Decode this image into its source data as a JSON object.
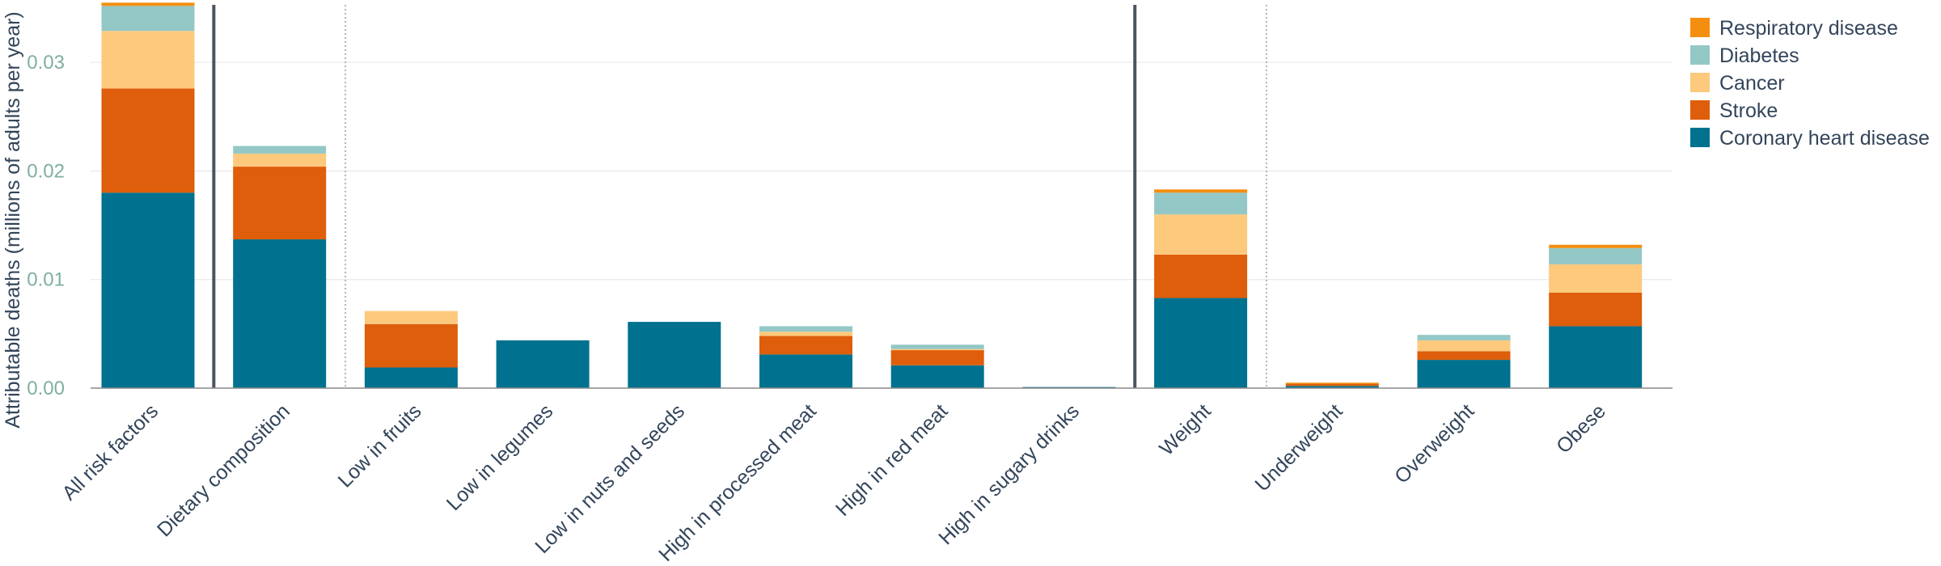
{
  "chart_data": {
    "type": "bar",
    "stacked": true,
    "title": "",
    "xlabel": "",
    "ylabel": "Attributable deaths (millions of adults per year)",
    "ylim": [
      0,
      0.0353
    ],
    "yticks": [
      0.0,
      0.01,
      0.02,
      0.03
    ],
    "ytick_labels": [
      "0.00",
      "0.01",
      "0.02",
      "0.03"
    ],
    "grid": true,
    "legend_position": "top-right",
    "categories": [
      "All risk factors",
      "Dietary composition",
      "Low in fruits",
      "Low in legumes",
      "Low in nuts and seeds",
      "High in processed meat",
      "High in red meat",
      "High in sugary drinks",
      "Weight",
      "Underweight",
      "Overweight",
      "Obese"
    ],
    "separators": [
      {
        "after_index": 0,
        "style": "solid"
      },
      {
        "after_index": 1,
        "style": "dotted"
      },
      {
        "after_index": 7,
        "style": "solid"
      },
      {
        "after_index": 8,
        "style": "dotted"
      }
    ],
    "series": [
      {
        "name": "Coronary heart disease",
        "color": "#00718f",
        "values": [
          0.018,
          0.0137,
          0.0019,
          0.0044,
          0.0061,
          0.0031,
          0.0021,
          0.0001,
          0.0083,
          0.0002,
          0.0026,
          0.0057
        ]
      },
      {
        "name": "Stroke",
        "color": "#de5e0b",
        "values": [
          0.0096,
          0.0067,
          0.004,
          0.0,
          0.0,
          0.0017,
          0.0014,
          0.0,
          0.004,
          0.0002,
          0.0008,
          0.0031
        ]
      },
      {
        "name": "Cancer",
        "color": "#fdc97d",
        "values": [
          0.0053,
          0.0012,
          0.0012,
          0.0,
          0.0,
          0.0004,
          0.0001,
          0.0,
          0.0037,
          0.0,
          0.001,
          0.0026
        ]
      },
      {
        "name": "Diabetes",
        "color": "#93c8c6",
        "values": [
          0.0023,
          0.0007,
          0.0,
          0.0,
          0.0,
          0.0005,
          0.0004,
          0.0,
          0.002,
          0.0,
          0.0005,
          0.0015
        ]
      },
      {
        "name": "Respiratory disease",
        "color": "#f48e0f",
        "values": [
          0.0003,
          0.0,
          0.0,
          0.0,
          0.0,
          0.0,
          0.0,
          0.0,
          0.0003,
          0.0001,
          0.0,
          0.0003
        ]
      }
    ],
    "legend_order": [
      "Respiratory disease",
      "Diabetes",
      "Cancer",
      "Stroke",
      "Coronary heart disease"
    ]
  }
}
